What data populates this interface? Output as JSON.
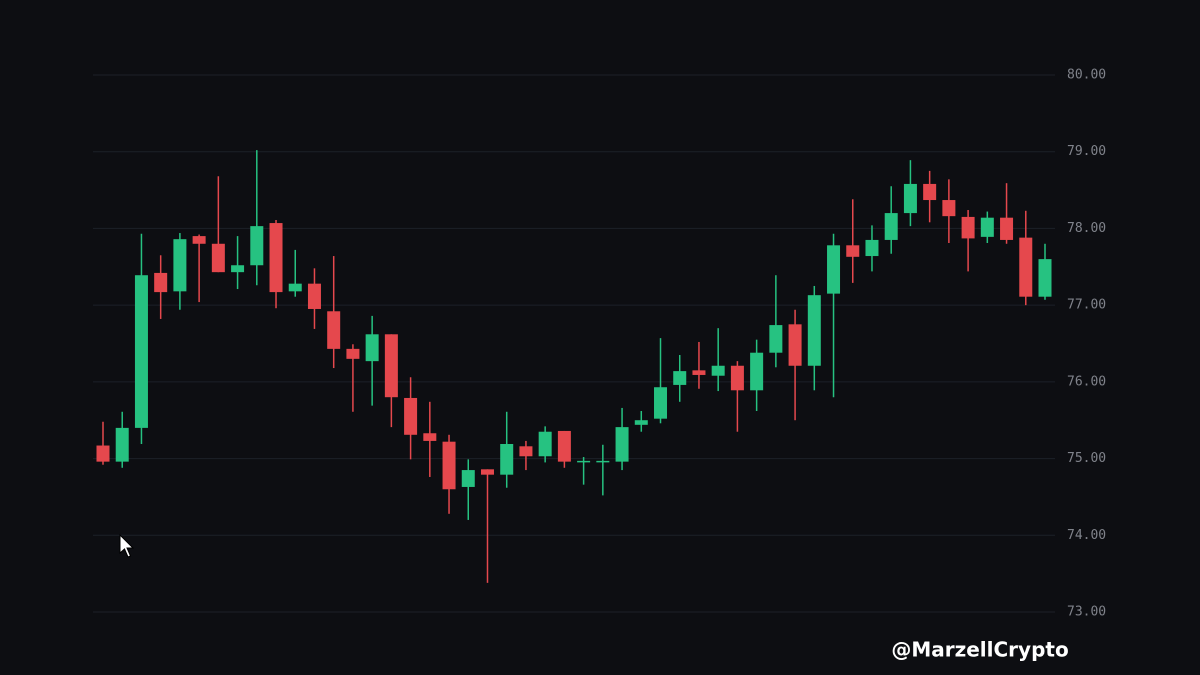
{
  "chart_data": {
    "type": "candlestick",
    "watermark": "@MarzellCrypto",
    "up_color": "#26c281",
    "down_color": "#e5484d",
    "ylim": [
      73,
      80
    ],
    "yticks": [
      {
        "value": 73,
        "label": "73.00"
      },
      {
        "value": 74,
        "label": "74.00"
      },
      {
        "value": 75,
        "label": "75.00"
      },
      {
        "value": 76,
        "label": "76.00"
      },
      {
        "value": 77,
        "label": "77.00"
      },
      {
        "value": 78,
        "label": "78.00"
      },
      {
        "value": 79,
        "label": "79.00"
      },
      {
        "value": 80,
        "label": "80.00"
      }
    ],
    "grid": true,
    "open": [
      75.17,
      74.96,
      75.4,
      77.42,
      77.18,
      77.9,
      77.8,
      77.43,
      77.52,
      78.07,
      77.18,
      77.28,
      76.92,
      76.43,
      76.27,
      76.62,
      75.79,
      75.33,
      75.22,
      74.63,
      74.86,
      74.79,
      75.16,
      75.03,
      75.36,
      74.96,
      74.96,
      74.96,
      75.44,
      75.52,
      75.96,
      76.15,
      76.08,
      76.21,
      75.89,
      76.38,
      76.75,
      76.21,
      77.15,
      77.78,
      77.64,
      77.85,
      78.2,
      78.58,
      78.37,
      78.15,
      77.89,
      78.14,
      77.88,
      77.11
    ],
    "high": [
      75.48,
      75.61,
      77.93,
      77.65,
      77.94,
      77.92,
      78.68,
      77.9,
      79.02,
      78.11,
      77.72,
      77.48,
      77.64,
      76.49,
      76.86,
      76.62,
      76.06,
      75.74,
      75.31,
      74.99,
      74.86,
      75.61,
      75.23,
      75.42,
      75.36,
      75.02,
      75.18,
      75.66,
      75.62,
      76.57,
      76.35,
      76.52,
      76.7,
      76.27,
      76.55,
      77.39,
      76.94,
      77.25,
      77.93,
      78.38,
      78.04,
      78.55,
      78.89,
      78.75,
      78.64,
      78.24,
      78.22,
      78.59,
      78.23,
      77.8
    ],
    "low": [
      74.92,
      74.88,
      75.19,
      76.82,
      76.94,
      77.04,
      77.43,
      77.21,
      77.26,
      76.96,
      77.11,
      76.69,
      76.18,
      75.61,
      75.69,
      75.41,
      74.99,
      74.76,
      74.28,
      74.2,
      73.38,
      74.62,
      74.85,
      74.95,
      74.88,
      74.66,
      74.52,
      74.85,
      75.35,
      75.46,
      75.74,
      75.91,
      75.88,
      75.35,
      75.62,
      76.19,
      75.5,
      75.89,
      75.8,
      77.29,
      77.44,
      77.67,
      78.03,
      78.08,
      77.81,
      77.44,
      77.81,
      77.8,
      77.0,
      77.07
    ],
    "close": [
      74.96,
      75.4,
      77.39,
      77.17,
      77.86,
      77.8,
      77.43,
      77.52,
      78.03,
      77.17,
      77.28,
      76.95,
      76.43,
      76.3,
      76.62,
      75.8,
      75.31,
      75.23,
      74.6,
      74.85,
      74.79,
      75.19,
      75.03,
      75.35,
      74.96,
      74.97,
      74.97,
      75.41,
      75.5,
      75.93,
      76.14,
      76.09,
      76.21,
      75.89,
      76.38,
      76.74,
      76.21,
      77.13,
      77.78,
      77.63,
      77.85,
      78.2,
      78.58,
      78.37,
      78.16,
      77.87,
      78.14,
      77.85,
      77.11,
      77.6
    ]
  }
}
